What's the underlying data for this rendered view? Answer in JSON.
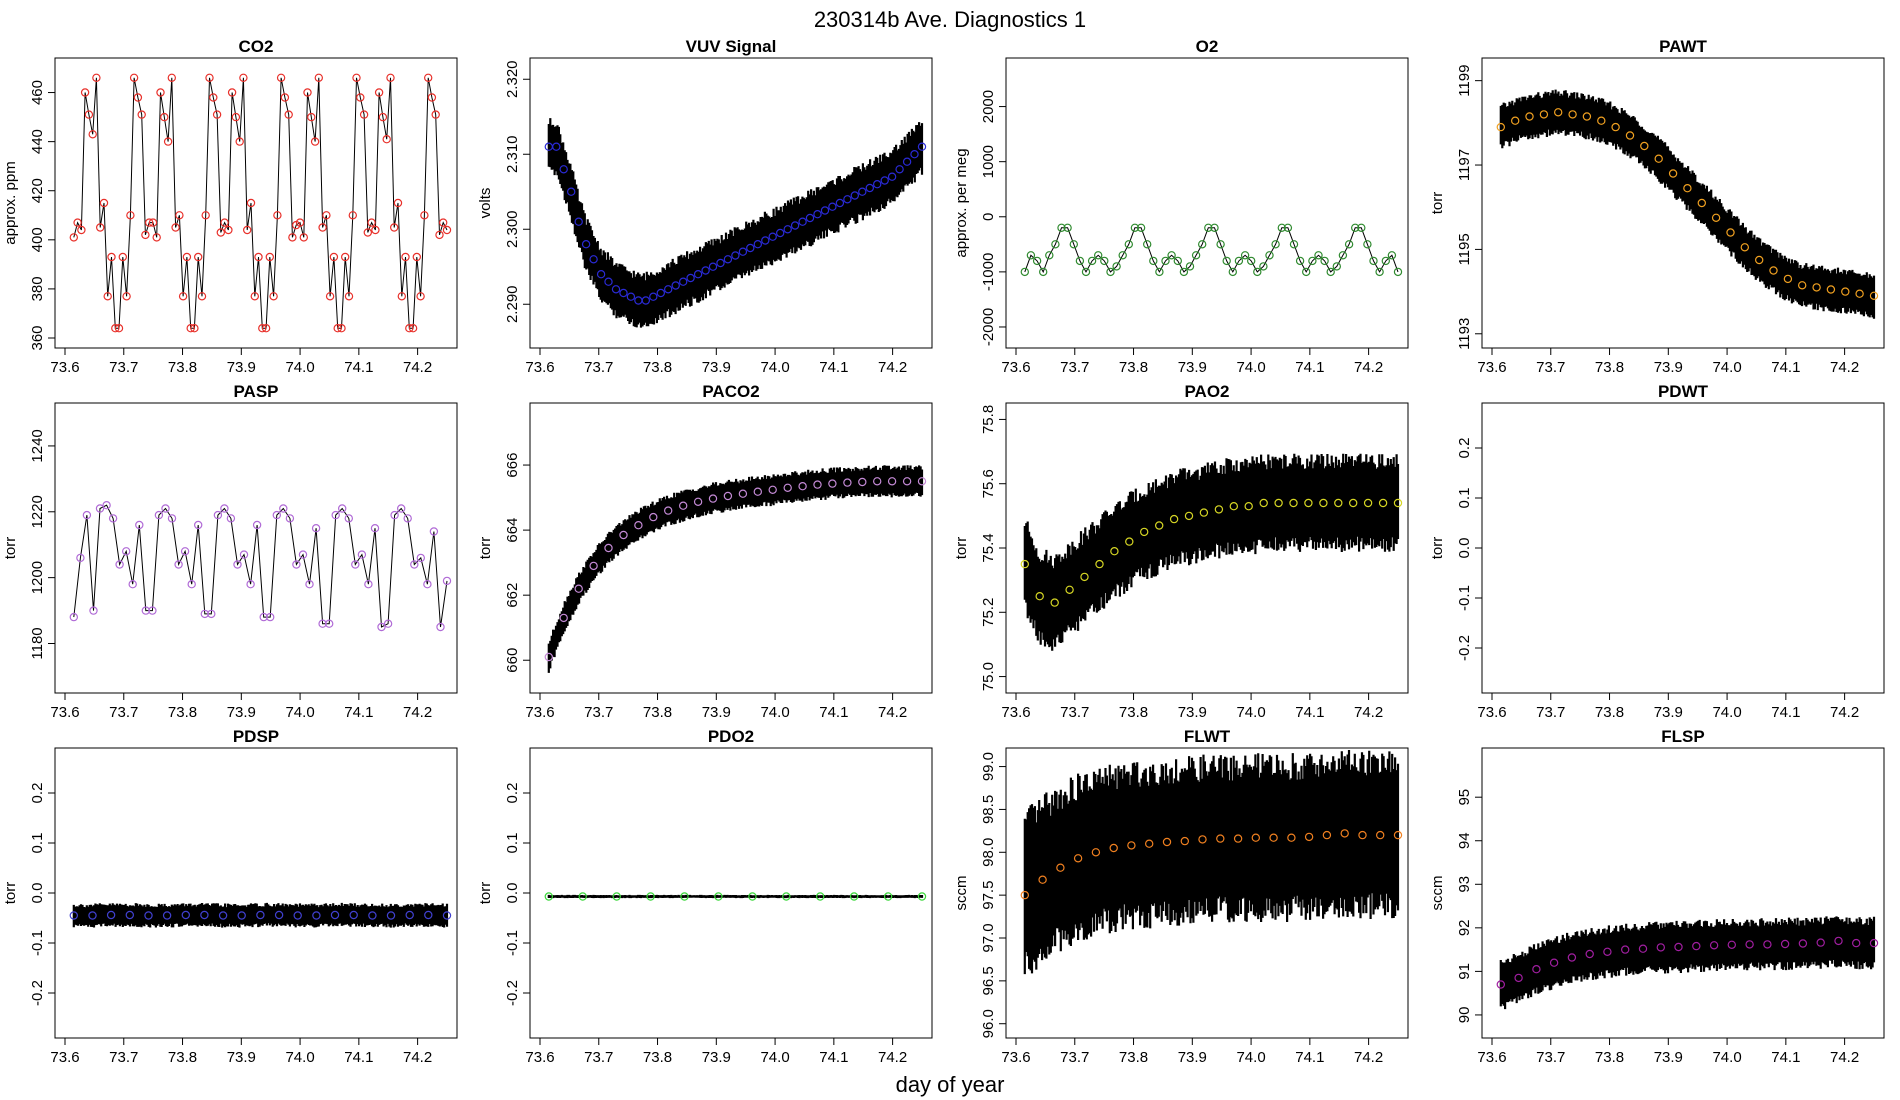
{
  "figure": {
    "title": "230314b   Ave. Diagnostics 1",
    "xlabel": "day of year"
  },
  "chart_data": [
    {
      "name": "co2",
      "type": "line",
      "title": "CO2",
      "ylabel": "approx. ppm",
      "xlim": [
        73.6,
        74.25
      ],
      "ylim": [
        360,
        470
      ],
      "xticks": [
        "73.6",
        "73.7",
        "73.8",
        "73.9",
        "74.0",
        "74.1",
        "74.2"
      ],
      "yticks": [
        "360",
        "380",
        "400",
        "420",
        "440",
        "460"
      ],
      "marker_color": "#e8302a",
      "line_color": "#000000",
      "band": 0,
      "series": {
        "x_start": 73.615,
        "x_end": 74.25,
        "values": [
          401,
          407,
          404,
          460,
          451,
          443,
          466,
          405,
          415,
          377,
          393,
          364,
          364,
          393,
          377,
          410,
          466,
          458,
          451,
          402,
          407,
          407,
          401,
          460,
          450,
          440,
          466,
          405,
          410,
          377,
          393,
          364,
          364,
          393,
          377,
          410,
          466,
          458,
          451,
          403,
          407,
          404,
          460,
          450,
          440,
          466,
          404,
          415,
          377,
          393,
          364,
          364,
          393,
          377,
          410,
          466,
          458,
          451,
          401,
          406,
          407,
          401,
          460,
          450,
          440,
          466,
          405,
          410,
          377,
          393,
          364,
          364,
          393,
          377,
          410,
          466,
          458,
          451,
          403,
          407,
          404,
          460,
          450,
          441,
          466,
          405,
          415,
          377,
          393,
          364,
          364,
          393,
          377,
          410,
          466,
          458,
          451,
          402,
          407,
          404
        ]
      }
    },
    {
      "name": "vuv",
      "type": "line",
      "title": "VUV Signal",
      "ylabel": "volts",
      "xlim": [
        73.6,
        74.25
      ],
      "ylim": [
        2.2855,
        2.3215
      ],
      "xticks": [
        "73.6",
        "73.7",
        "73.8",
        "73.9",
        "74.0",
        "74.1",
        "74.2"
      ],
      "yticks": [
        "2.290",
        "2.300",
        "2.310",
        "2.320"
      ],
      "marker_color": "#2a2ad6",
      "line_color": "#000000",
      "band": 0.0035,
      "series": {
        "x_start": 73.615,
        "x_end": 74.25,
        "values": [
          2.311,
          2.311,
          2.308,
          2.305,
          2.301,
          2.298,
          2.296,
          2.294,
          2.293,
          2.292,
          2.2915,
          2.291,
          2.2905,
          2.2905,
          2.291,
          2.2915,
          2.292,
          2.2925,
          2.293,
          2.2935,
          2.294,
          2.2945,
          2.295,
          2.2955,
          2.296,
          2.2965,
          2.297,
          2.2975,
          2.298,
          2.2985,
          2.299,
          2.2995,
          2.3,
          2.3005,
          2.301,
          2.3015,
          2.302,
          2.3025,
          2.303,
          2.3035,
          2.304,
          2.3045,
          2.305,
          2.3055,
          2.306,
          2.3065,
          2.307,
          2.308,
          2.309,
          2.31,
          2.311
        ]
      }
    },
    {
      "name": "o2",
      "type": "line",
      "title": "O2",
      "ylabel": "approx. per meg",
      "xlim": [
        73.6,
        74.25
      ],
      "ylim": [
        -2200,
        2700
      ],
      "xticks": [
        "73.6",
        "73.7",
        "73.8",
        "73.9",
        "74.0",
        "74.1",
        "74.2"
      ],
      "yticks": [
        "-2000",
        "-1000",
        "0",
        "1000",
        "2000"
      ],
      "marker_color": "#2f8a2f",
      "line_color": "#000000",
      "band": 0,
      "series": {
        "x_start": 73.615,
        "x_end": 74.25,
        "values": [
          -1000,
          -700,
          -800,
          -1000,
          -700,
          -500,
          -200,
          -200,
          -500,
          -800,
          -1000,
          -800,
          -700,
          -800,
          -1000,
          -900,
          -700,
          -500,
          -200,
          -200,
          -500,
          -800,
          -1000,
          -800,
          -700,
          -800,
          -1000,
          -900,
          -700,
          -500,
          -200,
          -200,
          -500,
          -800,
          -1000,
          -800,
          -700,
          -800,
          -1000,
          -900,
          -700,
          -500,
          -200,
          -200,
          -500,
          -800,
          -1000,
          -800,
          -700,
          -800,
          -1000,
          -900,
          -700,
          -500,
          -200,
          -200,
          -500,
          -800,
          -1000,
          -800,
          -700,
          -1000
        ]
      }
    },
    {
      "name": "pawt",
      "type": "line",
      "title": "PAWT",
      "ylabel": "torr",
      "xlim": [
        73.6,
        74.25
      ],
      "ylim": [
        1192.9,
        1199.3
      ],
      "xticks": [
        "73.6",
        "73.7",
        "73.8",
        "73.9",
        "74.0",
        "74.1",
        "74.2"
      ],
      "yticks": [
        "1193",
        "1195",
        "1197",
        "1199"
      ],
      "marker_color": "#f0a020",
      "line_color": "#000000",
      "band": 0.5,
      "series": {
        "x_start": 73.615,
        "x_end": 74.25,
        "values": [
          1197.9,
          1198.05,
          1198.15,
          1198.2,
          1198.25,
          1198.2,
          1198.15,
          1198.05,
          1197.9,
          1197.7,
          1197.45,
          1197.15,
          1196.8,
          1196.45,
          1196.1,
          1195.75,
          1195.4,
          1195.05,
          1194.75,
          1194.5,
          1194.3,
          1194.15,
          1194.1,
          1194.05,
          1194.0,
          1193.95,
          1193.9
        ]
      }
    },
    {
      "name": "pasp",
      "type": "line",
      "title": "PASP",
      "ylabel": "torr",
      "xlim": [
        73.6,
        74.25
      ],
      "ylim": [
        1168,
        1250
      ],
      "xticks": [
        "73.6",
        "73.7",
        "73.8",
        "73.9",
        "74.0",
        "74.1",
        "74.2"
      ],
      "yticks": [
        "1180",
        "1200",
        "1220",
        "1240"
      ],
      "marker_color": "#b06ad6",
      "line_color": "#000000",
      "band": 0,
      "series": {
        "x_start": 73.615,
        "x_end": 74.25,
        "values": [
          1188,
          1206,
          1219,
          1190,
          1221,
          1222,
          1218,
          1204,
          1208,
          1198,
          1216,
          1190,
          1190,
          1219,
          1221,
          1218,
          1204,
          1208,
          1198,
          1216,
          1189,
          1189,
          1219,
          1221,
          1218,
          1204,
          1207,
          1198,
          1216,
          1188,
          1188,
          1219,
          1221,
          1218,
          1204,
          1207,
          1198,
          1215,
          1186,
          1186,
          1219,
          1221,
          1218,
          1204,
          1207,
          1198,
          1215,
          1185,
          1186,
          1219,
          1221,
          1218,
          1204,
          1206,
          1198,
          1214,
          1185,
          1199
        ]
      }
    },
    {
      "name": "paco2",
      "type": "line",
      "title": "PACO2",
      "ylabel": "torr",
      "xlim": [
        73.6,
        74.25
      ],
      "ylim": [
        659.3,
        667.6
      ],
      "xticks": [
        "73.6",
        "73.7",
        "73.8",
        "73.9",
        "74.0",
        "74.1",
        "74.2"
      ],
      "yticks": [
        "660",
        "662",
        "664",
        "666"
      ],
      "marker_color": "#c48ad6",
      "line_color": "#000000",
      "band": 0.45,
      "series": {
        "x_start": 73.615,
        "x_end": 74.25,
        "values": [
          660.1,
          661.3,
          662.2,
          662.9,
          663.45,
          663.85,
          664.15,
          664.4,
          664.6,
          664.75,
          664.87,
          664.97,
          665.05,
          665.12,
          665.18,
          665.24,
          665.3,
          665.35,
          665.4,
          665.43,
          665.46,
          665.48,
          665.5,
          665.5,
          665.5,
          665.5
        ]
      }
    },
    {
      "name": "pao2",
      "type": "line",
      "title": "PAO2",
      "ylabel": "torr",
      "xlim": [
        73.6,
        74.25
      ],
      "ylim": [
        74.98,
        75.82
      ],
      "xticks": [
        "73.6",
        "73.7",
        "73.8",
        "73.9",
        "74.0",
        "74.1",
        "74.2"
      ],
      "yticks": [
        "75.0",
        "75.2",
        "75.4",
        "75.6",
        "75.8"
      ],
      "marker_color": "#d6d624",
      "line_color": "#000000",
      "band": 0.14,
      "series": {
        "x_start": 73.615,
        "x_end": 74.25,
        "values": [
          75.35,
          75.25,
          75.23,
          75.27,
          75.31,
          75.35,
          75.39,
          75.42,
          75.45,
          75.47,
          75.49,
          75.5,
          75.51,
          75.52,
          75.53,
          75.53,
          75.54,
          75.54,
          75.54,
          75.54,
          75.54,
          75.54,
          75.54,
          75.54,
          75.54,
          75.54
        ]
      }
    },
    {
      "name": "pdwt",
      "type": "line",
      "title": "PDWT",
      "ylabel": "torr",
      "xlim": [
        73.6,
        74.25
      ],
      "ylim": [
        -0.27,
        0.27
      ],
      "xticks": [
        "73.6",
        "73.7",
        "73.8",
        "73.9",
        "74.0",
        "74.1",
        "74.2"
      ],
      "yticks": [
        "-0.2",
        "-0.1",
        "0.0",
        "0.1",
        "0.2"
      ],
      "marker_color": "#000000",
      "line_color": "#000000",
      "band": 0,
      "series": {
        "x_start": 73.615,
        "x_end": 74.25,
        "values": []
      }
    },
    {
      "name": "pdsp",
      "type": "line",
      "title": "PDSP",
      "ylabel": "torr",
      "xlim": [
        73.6,
        74.25
      ],
      "ylim": [
        -0.27,
        0.27
      ],
      "xticks": [
        "73.6",
        "73.7",
        "73.8",
        "73.9",
        "74.0",
        "74.1",
        "74.2"
      ],
      "yticks": [
        "-0.2",
        "-0.1",
        "0.0",
        "0.1",
        "0.2"
      ],
      "marker_color": "#4040d0",
      "line_color": "#000000",
      "band": 0.022,
      "series": {
        "x_start": 73.615,
        "x_end": 74.25,
        "values": [
          -0.045,
          -0.045,
          -0.044,
          -0.044,
          -0.045,
          -0.045,
          -0.044,
          -0.044,
          -0.045,
          -0.045,
          -0.044,
          -0.044,
          -0.045,
          -0.045,
          -0.044,
          -0.044,
          -0.045,
          -0.045,
          -0.044,
          -0.044,
          -0.045
        ]
      }
    },
    {
      "name": "pdo2",
      "type": "line",
      "title": "PDO2",
      "ylabel": "torr",
      "xlim": [
        73.6,
        74.25
      ],
      "ylim": [
        -0.27,
        0.27
      ],
      "xticks": [
        "73.6",
        "73.7",
        "73.8",
        "73.9",
        "74.0",
        "74.1",
        "74.2"
      ],
      "yticks": [
        "-0.2",
        "-0.1",
        "0.0",
        "0.1",
        "0.2"
      ],
      "marker_color": "#3ad63a",
      "line_color": "#000000",
      "band": 0.003,
      "series": {
        "x_start": 73.615,
        "x_end": 74.25,
        "values": [
          -0.007,
          -0.007,
          -0.007,
          -0.007,
          -0.007,
          -0.007,
          -0.007,
          -0.007,
          -0.007,
          -0.007,
          -0.007,
          -0.007
        ]
      }
    },
    {
      "name": "flwt",
      "type": "line",
      "title": "FLWT",
      "ylabel": "sccm",
      "xlim": [
        73.6,
        74.25
      ],
      "ylim": [
        95.95,
        99.1
      ],
      "xticks": [
        "73.6",
        "73.7",
        "73.8",
        "73.9",
        "74.0",
        "74.1",
        "74.2"
      ],
      "yticks": [
        "96.0",
        "96.5",
        "97.0",
        "97.5",
        "98.0",
        "98.5",
        "99.0"
      ],
      "marker_color": "#f08020",
      "line_color": "#000000",
      "band": 0.9,
      "series": {
        "x_start": 73.615,
        "x_end": 74.25,
        "values": [
          97.5,
          97.68,
          97.82,
          97.93,
          98.0,
          98.05,
          98.08,
          98.1,
          98.12,
          98.13,
          98.15,
          98.16,
          98.16,
          98.17,
          98.17,
          98.17,
          98.18,
          98.2,
          98.22,
          98.2,
          98.2,
          98.2
        ]
      }
    },
    {
      "name": "flsp",
      "type": "line",
      "title": "FLSP",
      "ylabel": "sccm",
      "xlim": [
        73.6,
        74.25
      ],
      "ylim": [
        89.7,
        95.9
      ],
      "xticks": [
        "73.6",
        "73.7",
        "73.8",
        "73.9",
        "74.0",
        "74.1",
        "74.2"
      ],
      "yticks": [
        "90",
        "91",
        "92",
        "93",
        "94",
        "95"
      ],
      "marker_color": "#a01ea0",
      "line_color": "#000000",
      "band": 0.55,
      "series": {
        "x_start": 73.615,
        "x_end": 74.25,
        "values": [
          90.7,
          90.85,
          91.05,
          91.2,
          91.32,
          91.4,
          91.45,
          91.5,
          91.52,
          91.55,
          91.56,
          91.58,
          91.6,
          91.61,
          91.62,
          91.62,
          91.63,
          91.64,
          91.66,
          91.7,
          91.65,
          91.65
        ]
      }
    }
  ]
}
